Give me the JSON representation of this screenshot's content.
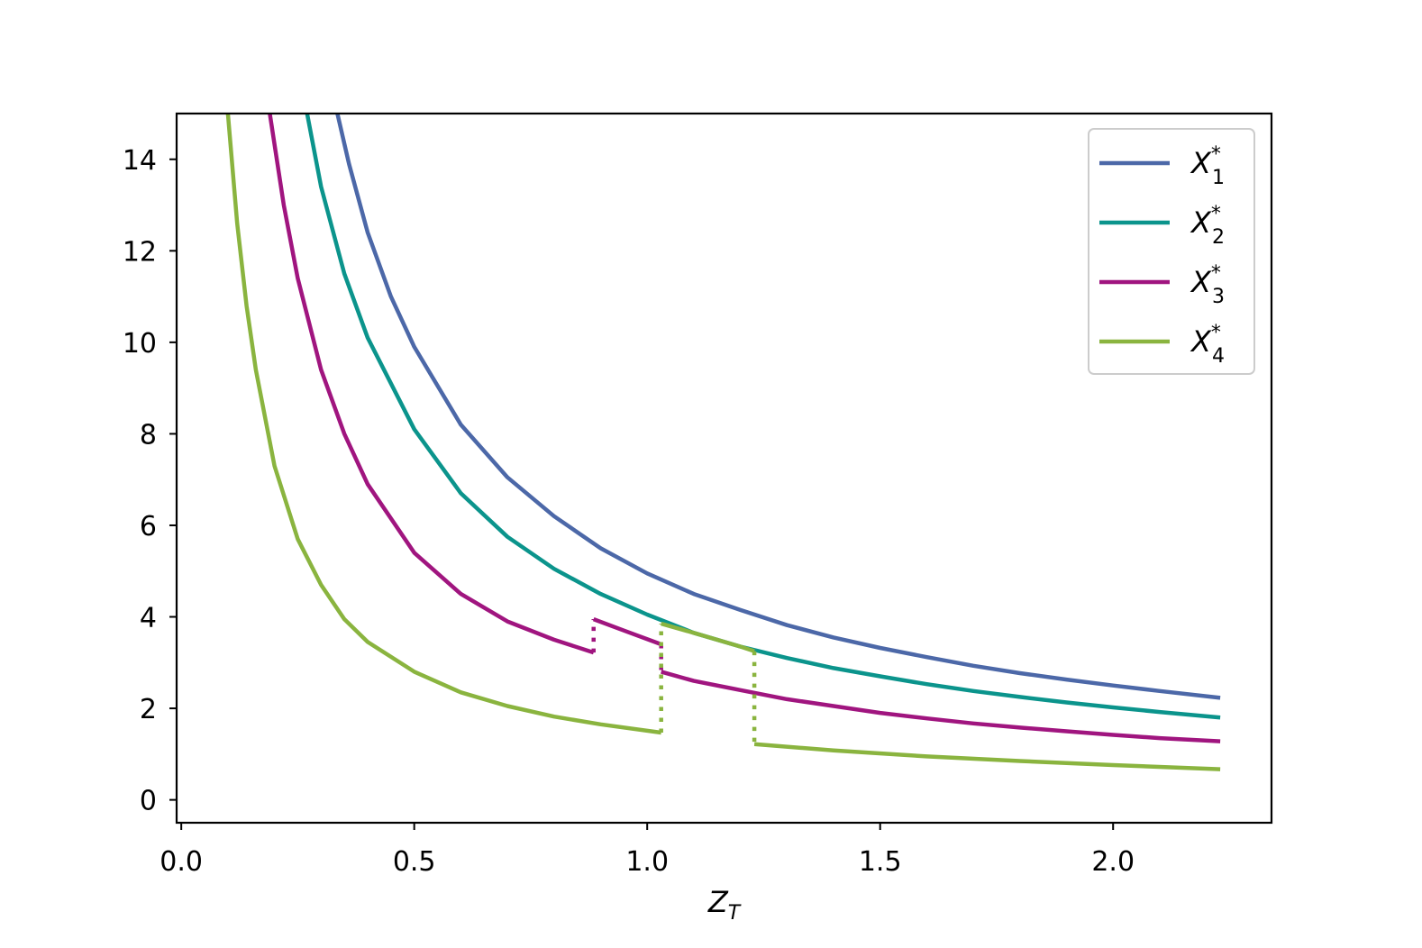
{
  "chart_data": {
    "type": "line",
    "xlabel": {
      "main": "Z",
      "sub": "T"
    },
    "ylabel": "",
    "xlim": [
      -0.01,
      2.34
    ],
    "ylim": [
      -0.5,
      15
    ],
    "xticks": [
      0.0,
      0.5,
      1.0,
      1.5,
      2.0
    ],
    "xtick_labels": [
      "0.0",
      "0.5",
      "1.0",
      "1.5",
      "2.0"
    ],
    "yticks": [
      0,
      2,
      4,
      6,
      8,
      10,
      12,
      14
    ],
    "ytick_labels": [
      "0",
      "2",
      "4",
      "6",
      "8",
      "10",
      "12",
      "14"
    ],
    "grid": false,
    "legend_position": "top-right",
    "series": [
      {
        "name": "X",
        "name_sub": "1",
        "name_sup": "*",
        "color": "#4c68a8",
        "segments": [
          [
            [
              0.335,
              15.0
            ],
            [
              0.36,
              13.9
            ],
            [
              0.4,
              12.4
            ],
            [
              0.45,
              11.0
            ],
            [
              0.5,
              9.9
            ],
            [
              0.6,
              8.2
            ],
            [
              0.7,
              7.05
            ],
            [
              0.8,
              6.2
            ],
            [
              0.9,
              5.5
            ],
            [
              1.0,
              4.95
            ],
            [
              1.1,
              4.5
            ],
            [
              1.2,
              4.15
            ],
            [
              1.3,
              3.82
            ],
            [
              1.4,
              3.55
            ],
            [
              1.5,
              3.32
            ],
            [
              1.6,
              3.12
            ],
            [
              1.7,
              2.93
            ],
            [
              1.8,
              2.77
            ],
            [
              1.9,
              2.63
            ],
            [
              2.0,
              2.5
            ],
            [
              2.1,
              2.38
            ],
            [
              2.23,
              2.23
            ]
          ]
        ],
        "dotted_connectors": []
      },
      {
        "name": "X",
        "name_sub": "2",
        "name_sup": "*",
        "color": "#0b948c",
        "segments": [
          [
            [
              0.27,
              15.0
            ],
            [
              0.3,
              13.4
            ],
            [
              0.35,
              11.5
            ],
            [
              0.4,
              10.1
            ],
            [
              0.5,
              8.1
            ],
            [
              0.6,
              6.7
            ],
            [
              0.7,
              5.75
            ],
            [
              0.8,
              5.05
            ],
            [
              0.9,
              4.5
            ],
            [
              1.0,
              4.05
            ],
            [
              1.1,
              3.65
            ],
            [
              1.2,
              3.35
            ],
            [
              1.3,
              3.1
            ],
            [
              1.4,
              2.88
            ],
            [
              1.5,
              2.7
            ],
            [
              1.6,
              2.53
            ],
            [
              1.7,
              2.38
            ],
            [
              1.8,
              2.25
            ],
            [
              1.9,
              2.13
            ],
            [
              2.0,
              2.02
            ],
            [
              2.1,
              1.92
            ],
            [
              2.23,
              1.8
            ]
          ]
        ],
        "dotted_connectors": []
      },
      {
        "name": "X",
        "name_sub": "3",
        "name_sup": "*",
        "color": "#a0157f",
        "segments": [
          [
            [
              0.19,
              15.0
            ],
            [
              0.22,
              13.0
            ],
            [
              0.25,
              11.4
            ],
            [
              0.3,
              9.4
            ],
            [
              0.35,
              8.0
            ],
            [
              0.4,
              6.9
            ],
            [
              0.5,
              5.4
            ],
            [
              0.6,
              4.5
            ],
            [
              0.7,
              3.9
            ],
            [
              0.8,
              3.5
            ],
            [
              0.885,
              3.22
            ]
          ],
          [
            [
              0.885,
              3.95
            ],
            [
              0.95,
              3.7
            ],
            [
              1.03,
              3.4
            ]
          ],
          [
            [
              1.03,
              2.8
            ],
            [
              1.1,
              2.6
            ],
            [
              1.2,
              2.4
            ],
            [
              1.3,
              2.2
            ],
            [
              1.4,
              2.05
            ],
            [
              1.5,
              1.9
            ],
            [
              1.6,
              1.78
            ],
            [
              1.7,
              1.67
            ],
            [
              1.8,
              1.58
            ],
            [
              1.9,
              1.5
            ],
            [
              2.0,
              1.42
            ],
            [
              2.1,
              1.35
            ],
            [
              2.23,
              1.28
            ]
          ]
        ],
        "dotted_connectors": [
          [
            [
              0.885,
              3.22
            ],
            [
              0.885,
              3.95
            ]
          ],
          [
            [
              1.03,
              3.4
            ],
            [
              1.03,
              2.8
            ]
          ]
        ]
      },
      {
        "name": "X",
        "name_sub": "4",
        "name_sup": "*",
        "color": "#8ab43f",
        "segments": [
          [
            [
              0.1,
              15.0
            ],
            [
              0.12,
              12.6
            ],
            [
              0.14,
              10.8
            ],
            [
              0.16,
              9.4
            ],
            [
              0.2,
              7.3
            ],
            [
              0.25,
              5.7
            ],
            [
              0.3,
              4.7
            ],
            [
              0.35,
              3.95
            ],
            [
              0.4,
              3.45
            ],
            [
              0.5,
              2.8
            ],
            [
              0.6,
              2.35
            ],
            [
              0.7,
              2.05
            ],
            [
              0.8,
              1.82
            ],
            [
              0.9,
              1.65
            ],
            [
              1.03,
              1.47
            ]
          ],
          [
            [
              1.03,
              3.85
            ],
            [
              1.1,
              3.65
            ],
            [
              1.2,
              3.35
            ],
            [
              1.23,
              3.25
            ]
          ],
          [
            [
              1.23,
              1.22
            ],
            [
              1.4,
              1.08
            ],
            [
              1.6,
              0.95
            ],
            [
              1.8,
              0.85
            ],
            [
              2.0,
              0.76
            ],
            [
              2.23,
              0.67
            ]
          ]
        ],
        "dotted_connectors": [
          [
            [
              1.03,
              1.47
            ],
            [
              1.03,
              3.85
            ]
          ],
          [
            [
              1.23,
              3.25
            ],
            [
              1.23,
              1.22
            ]
          ]
        ]
      }
    ]
  }
}
